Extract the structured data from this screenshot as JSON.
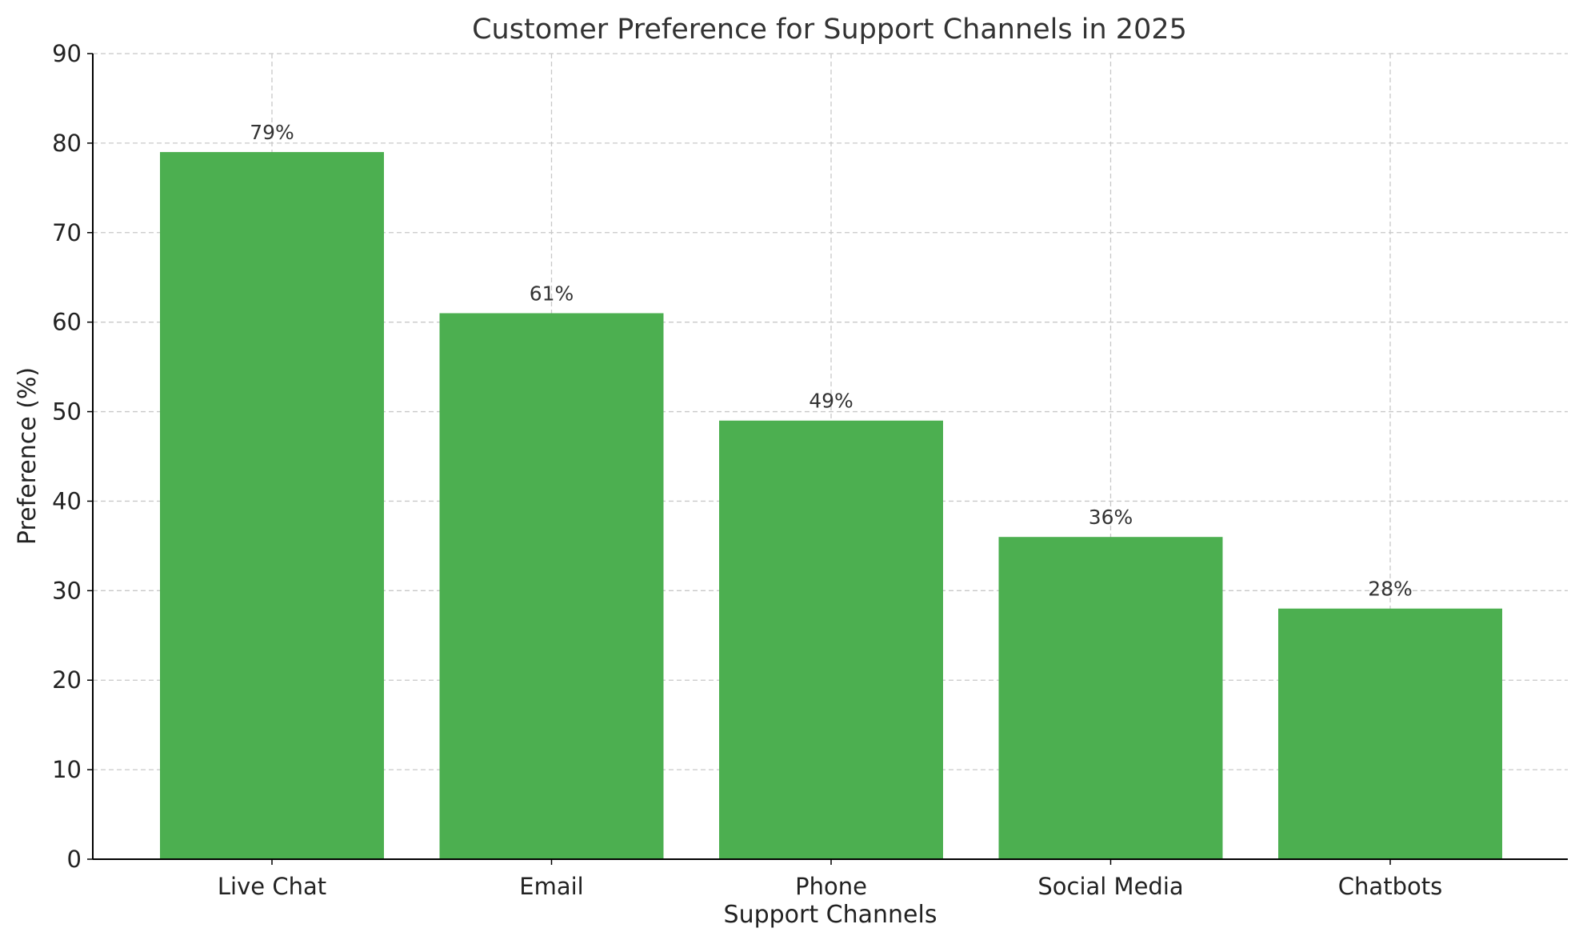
{
  "chart_data": {
    "type": "bar",
    "title": "Customer Preference for Support Channels in 2025",
    "xlabel": "Support Channels",
    "ylabel": "Preference (%)",
    "categories": [
      "Live Chat",
      "Email",
      "Phone",
      "Social Media",
      "Chatbots"
    ],
    "values": [
      79,
      61,
      49,
      36,
      28
    ],
    "data_labels": [
      "79%",
      "61%",
      "49%",
      "36%",
      "28%"
    ],
    "ylim": [
      0,
      90
    ],
    "yticks": [
      0,
      10,
      20,
      30,
      40,
      50,
      60,
      70,
      80,
      90
    ],
    "grid": true,
    "bar_color": "#4caf50"
  }
}
